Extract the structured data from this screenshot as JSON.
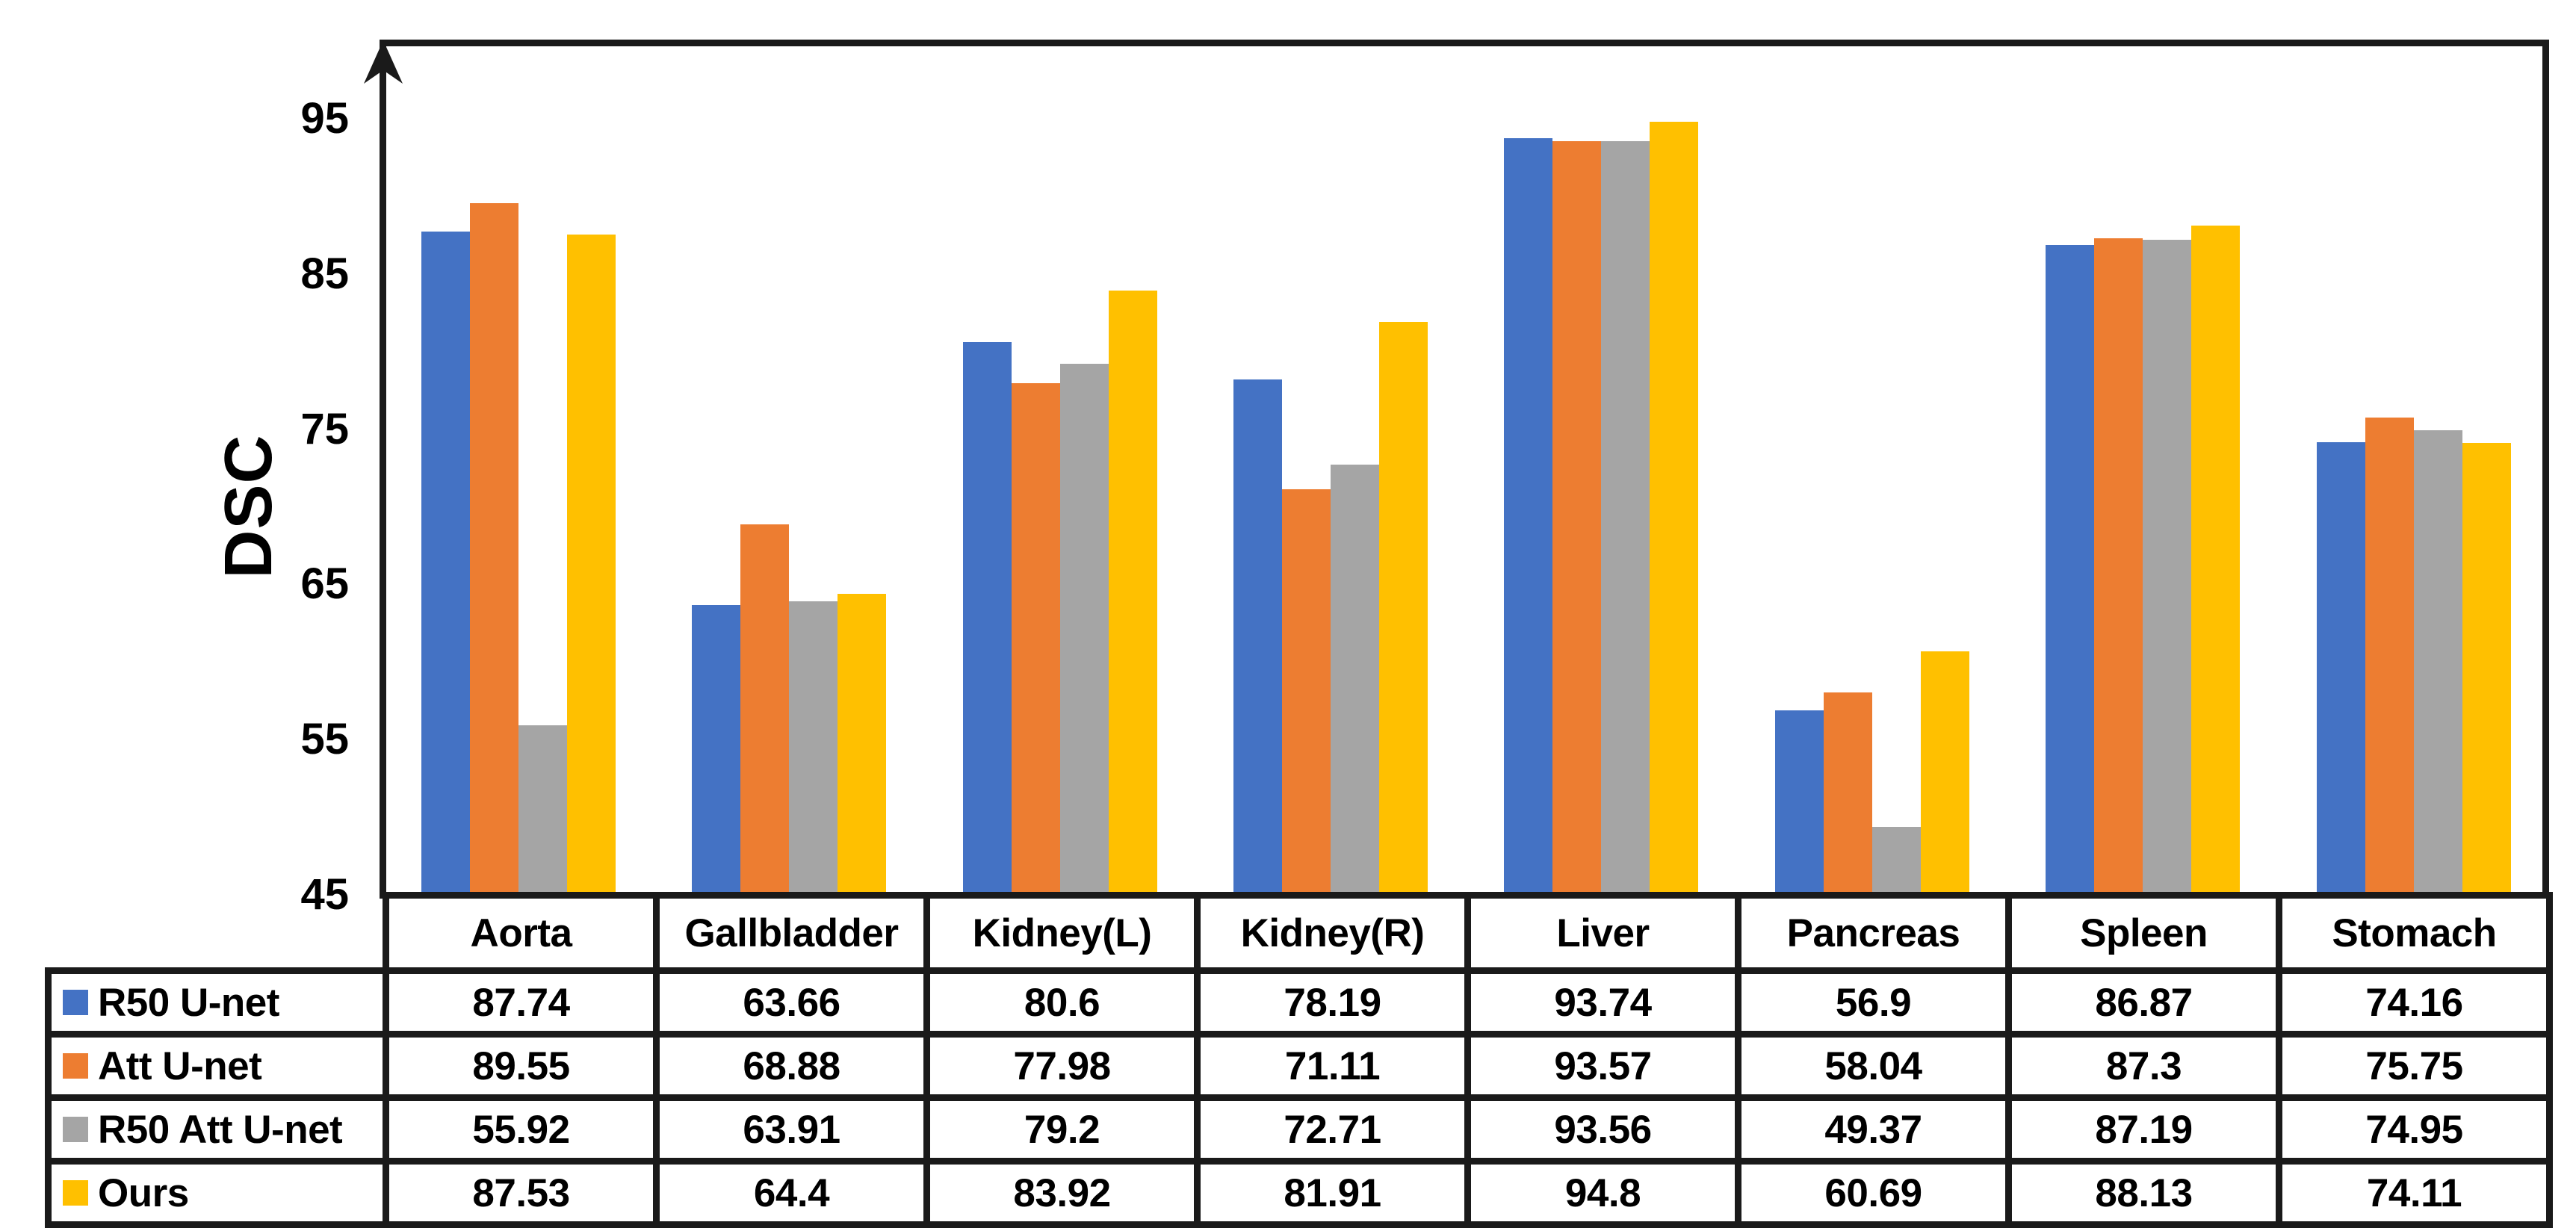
{
  "chart_data": {
    "type": "bar",
    "title": "",
    "ylabel": "DSC",
    "xlabel": "",
    "ylim": [
      45,
      100
    ],
    "yticks": [
      95,
      85,
      75,
      65,
      55,
      45
    ],
    "grid": false,
    "legend_position": "table-left-column",
    "categories": [
      "Aorta",
      "Gallbladder",
      "Kidney(L)",
      "Kidney(R)",
      "Liver",
      "Pancreas",
      "Spleen",
      "Stomach"
    ],
    "series": [
      {
        "name": "R50 U-net",
        "color": "#4472C4",
        "values": [
          87.74,
          63.66,
          80.6,
          78.19,
          93.74,
          56.9,
          86.87,
          74.16
        ]
      },
      {
        "name": "Att U-net",
        "color": "#ED7D31",
        "values": [
          89.55,
          68.88,
          77.98,
          71.11,
          93.57,
          58.04,
          87.3,
          75.75
        ]
      },
      {
        "name": "R50 Att U-net",
        "color": "#A5A5A5",
        "values": [
          55.92,
          63.91,
          79.2,
          72.71,
          93.56,
          49.37,
          87.19,
          74.95
        ]
      },
      {
        "name": "Ours",
        "color": "#FFC000",
        "values": [
          87.53,
          64.4,
          83.92,
          81.91,
          94.8,
          60.69,
          88.13,
          74.11
        ]
      }
    ]
  }
}
